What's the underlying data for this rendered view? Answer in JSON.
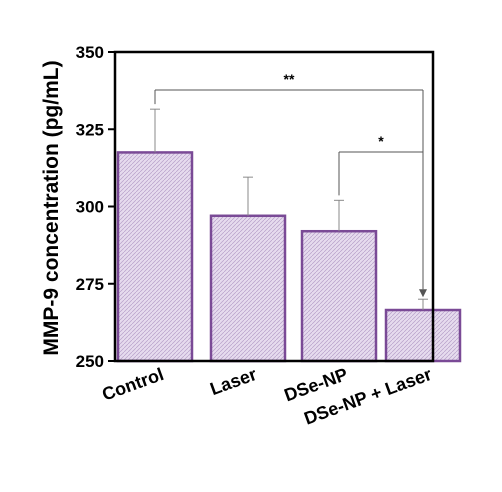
{
  "chart_data": {
    "type": "bar",
    "ylabel": "MMP-9 concentration (pg/mL)",
    "categories": [
      "Control",
      "Laser",
      "DSe-NP",
      "DSe-NP + Laser"
    ],
    "values": [
      317.5,
      297,
      292,
      266.5
    ],
    "errors": [
      14,
      12.5,
      10,
      3.5
    ],
    "ylim": [
      250,
      350
    ],
    "yticks": [
      250,
      275,
      300,
      325,
      350
    ],
    "bar_fill": "#e2d6ea",
    "bar_stroke": "#7a4a96",
    "bar_pattern": "hatched",
    "significance": [
      {
        "from": 0,
        "to": 3,
        "label": "**"
      },
      {
        "from": 2,
        "to": 3,
        "label": "*"
      }
    ]
  }
}
